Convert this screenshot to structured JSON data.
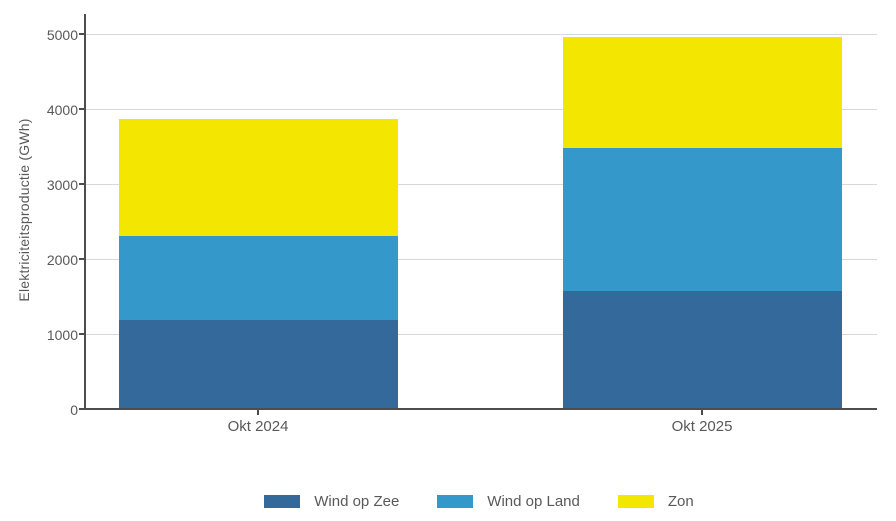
{
  "chart_data": {
    "type": "bar",
    "stacked": true,
    "title": "",
    "xlabel": "",
    "ylabel": "Elektriciteitsproductie (GWh)",
    "categories": [
      "Okt 2024",
      "Okt 2025"
    ],
    "series": [
      {
        "name": "Wind op Zee",
        "color": "#336A9B",
        "values": [
          1170,
          1560
        ]
      },
      {
        "name": "Wind op Land",
        "color": "#3498CB",
        "values": [
          1120,
          1910
        ]
      },
      {
        "name": "Zon",
        "color": "#F3E600",
        "values": [
          1570,
          1480
        ]
      }
    ],
    "totals": [
      3860,
      4950
    ],
    "ylim": [
      0,
      5000
    ],
    "yticks": [
      0,
      1000,
      2000,
      3000,
      4000,
      5000
    ],
    "grid": true,
    "legend_position": "bottom"
  },
  "colors": {
    "background": "#FFFFFF",
    "gridline": "#D8D8D8",
    "axis": "#4D4D4D",
    "text": "#595959"
  }
}
